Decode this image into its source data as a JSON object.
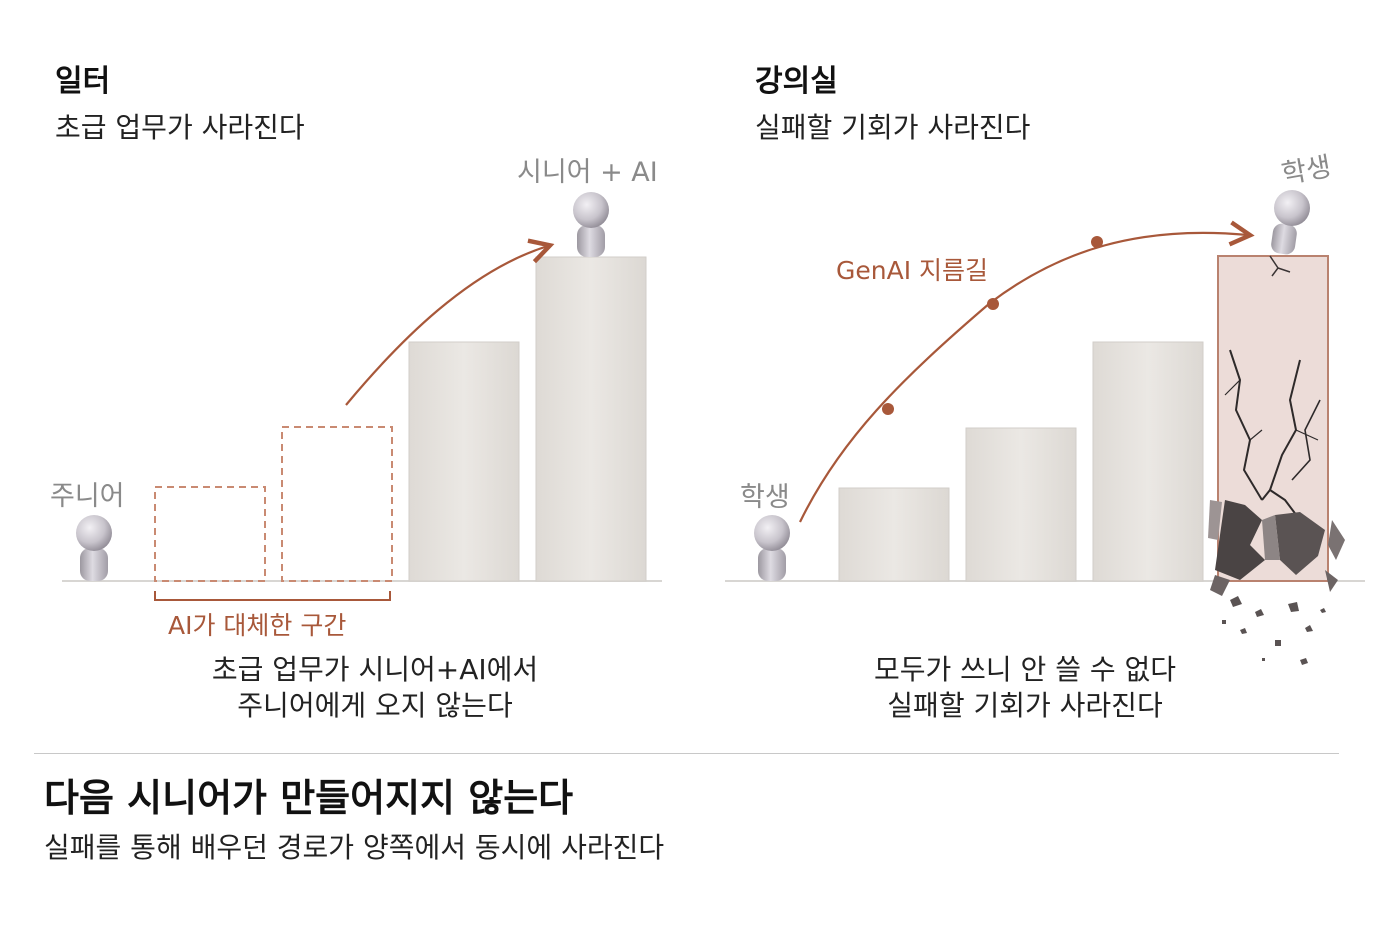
{
  "left_panel": {
    "title": "일터",
    "subtitle": "초급 업무가 사라진다",
    "junior_label": "주니어",
    "senior_label": "시니어 + AI",
    "replaced_label": "AI가 대체한 구간",
    "caption_line1": "초급 업무가 시니어+AI에서",
    "caption_line2": "주니어에게 오지 않는다"
  },
  "right_panel": {
    "title": "강의실",
    "subtitle": "실패할 기회가 사라진다",
    "student_label_start": "학생",
    "student_label_top": "학생",
    "shortcut_label": "GenAI 지름길",
    "caption_line1": "모두가 쓰니 안 쓸 수 없다",
    "caption_line2": "실패할 기회가 사라진다"
  },
  "bottom": {
    "title": "다음 시니어가 만들어지지 않는다",
    "subtitle": "실패를 통해 배우던 경로가 양쪽에서 동시에 사라진다"
  },
  "colors": {
    "accent": "#a8583a",
    "bar_fill": "#e6e3df",
    "cracked_fill": "#ecdcd8",
    "figure": "#c9c5cf"
  }
}
